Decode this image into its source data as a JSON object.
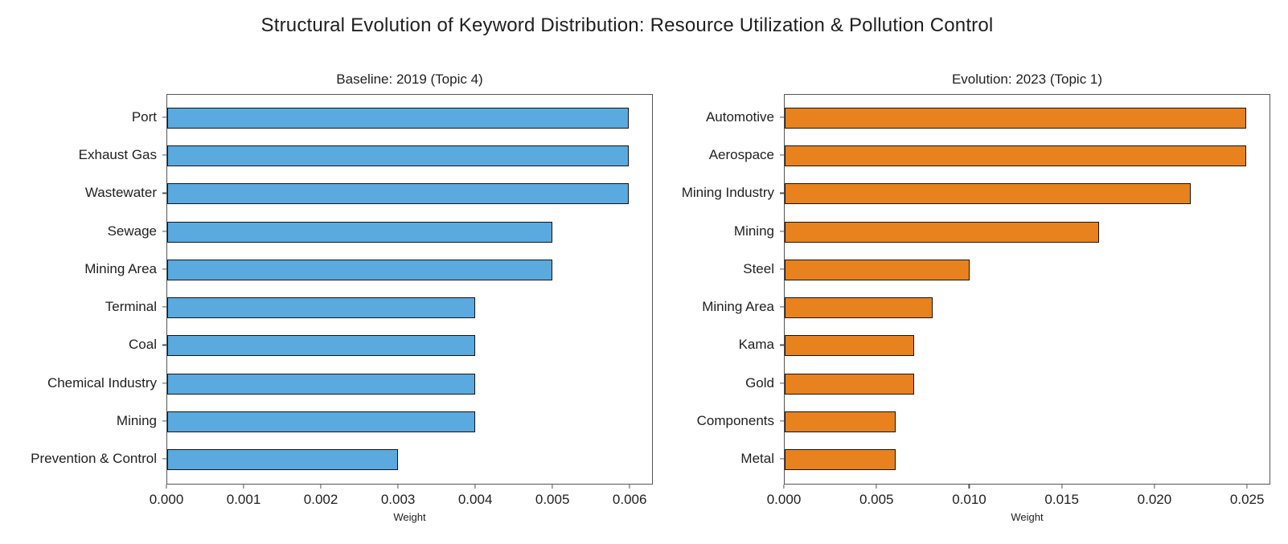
{
  "figure": {
    "title": "Structural Evolution of Keyword Distribution: Resource Utilization & Pollution Control"
  },
  "chart_data": [
    {
      "type": "bar",
      "orientation": "horizontal",
      "title": "Baseline: 2019 (Topic 4)",
      "xlabel": "Weight",
      "categories": [
        "Port",
        "Exhaust Gas",
        "Wastewater",
        "Sewage",
        "Mining Area",
        "Terminal",
        "Coal",
        "Chemical Industry",
        "Mining",
        "Prevention & Control"
      ],
      "values": [
        0.006,
        0.006,
        0.006,
        0.005,
        0.005,
        0.004,
        0.004,
        0.004,
        0.004,
        0.003
      ],
      "xlim": [
        0,
        0.0063
      ],
      "xticks": [
        0,
        0.001,
        0.002,
        0.003,
        0.004,
        0.005,
        0.006
      ],
      "xtick_labels": [
        "0.000",
        "0.001",
        "0.002",
        "0.003",
        "0.004",
        "0.005",
        "0.006"
      ],
      "grid": false,
      "legend": null,
      "bar_color": "#5AA9DF",
      "bar_edge_color": "#141414"
    },
    {
      "type": "bar",
      "orientation": "horizontal",
      "title": "Evolution: 2023 (Topic 1)",
      "xlabel": "Weight",
      "categories": [
        "Automotive",
        "Aerospace",
        "Mining Industry",
        "Mining",
        "Steel",
        "Mining Area",
        "Kama",
        "Gold",
        "Components",
        "Metal"
      ],
      "values": [
        0.025,
        0.025,
        0.022,
        0.017,
        0.01,
        0.008,
        0.007,
        0.007,
        0.006,
        0.006
      ],
      "xlim": [
        0,
        0.02625
      ],
      "xticks": [
        0,
        0.005,
        0.01,
        0.015,
        0.02,
        0.025
      ],
      "xtick_labels": [
        "0.000",
        "0.005",
        "0.010",
        "0.015",
        "0.020",
        "0.025"
      ],
      "grid": false,
      "legend": null,
      "bar_color": "#E8821E",
      "bar_edge_color": "#141414"
    }
  ]
}
